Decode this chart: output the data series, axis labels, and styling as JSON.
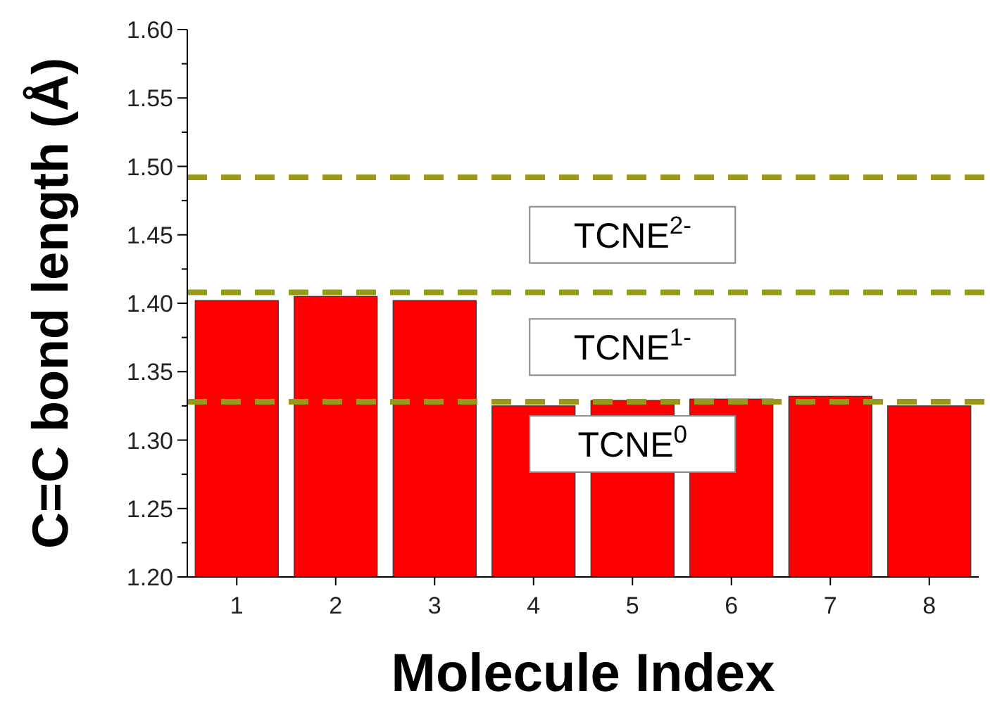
{
  "chart_data": {
    "type": "bar",
    "xlabel": "Molecule Index",
    "ylabel": "C=C bond length (Å)",
    "categories": [
      "1",
      "2",
      "3",
      "4",
      "5",
      "6",
      "7",
      "8"
    ],
    "values": [
      1.402,
      1.405,
      1.402,
      1.325,
      1.329,
      1.33,
      1.332,
      1.325
    ],
    "color": "#ff0000",
    "ylim": [
      1.2,
      1.6
    ],
    "yticks": [
      {
        "value": 1.2,
        "label": "1.20"
      },
      {
        "value": 1.225,
        "label": null
      },
      {
        "value": 1.25,
        "label": "1.25"
      },
      {
        "value": 1.275,
        "label": null
      },
      {
        "value": 1.3,
        "label": "1.30"
      },
      {
        "value": 1.325,
        "label": null
      },
      {
        "value": 1.35,
        "label": "1.35"
      },
      {
        "value": 1.375,
        "label": null
      },
      {
        "value": 1.4,
        "label": "1.40"
      },
      {
        "value": 1.425,
        "label": null
      },
      {
        "value": 1.45,
        "label": "1.45"
      },
      {
        "value": 1.475,
        "label": null
      },
      {
        "value": 1.5,
        "label": "1.50"
      },
      {
        "value": 1.525,
        "label": null
      },
      {
        "value": 1.55,
        "label": "1.55"
      },
      {
        "value": 1.575,
        "label": null
      },
      {
        "value": 1.6,
        "label": "1.60"
      }
    ],
    "ref_lines": [
      {
        "axis": "y",
        "value": 1.492,
        "color": "#999919",
        "line_style": "dashed"
      },
      {
        "axis": "y",
        "value": 1.408,
        "color": "#999919",
        "line_style": "dashed"
      },
      {
        "axis": "y",
        "value": 1.328,
        "color": "#999919",
        "line_style": "dashed"
      }
    ],
    "annotations": [
      "TCNE$^{2-}$",
      "TCNE$^{1-}$",
      "TCNE$^{0}$"
    ]
  }
}
